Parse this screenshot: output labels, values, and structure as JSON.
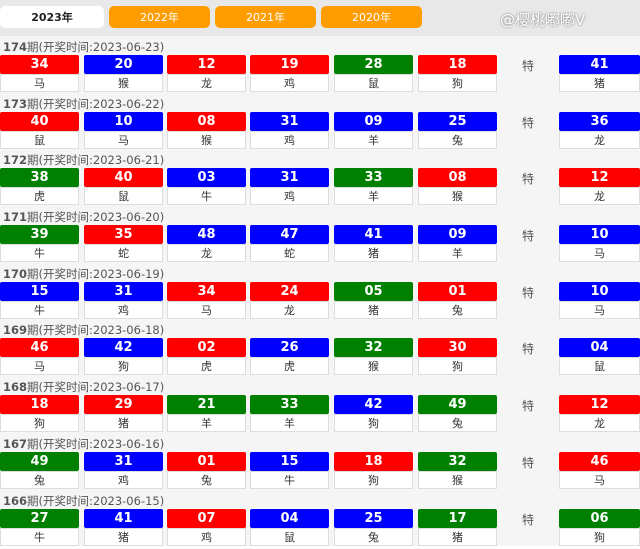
{
  "tabs": [
    {
      "label": "2023年",
      "active": true
    },
    {
      "label": "2022年"
    },
    {
      "label": "2021年"
    },
    {
      "label": "2020年"
    }
  ],
  "colors": {
    "red": "#ff0000",
    "blue": "#0000ff",
    "green": "#008000",
    "tab": "#ff9d00"
  },
  "special_label": "特",
  "period_prefix": "期(开奖时间:",
  "draws": [
    {
      "period": "174",
      "date": "2023-06-23",
      "balls": [
        [
          "34",
          "red",
          "马"
        ],
        [
          "20",
          "blue",
          "猴"
        ],
        [
          "12",
          "red",
          "龙"
        ],
        [
          "19",
          "red",
          "鸡"
        ],
        [
          "28",
          "green",
          "鼠"
        ],
        [
          "18",
          "red",
          "狗"
        ]
      ],
      "special": [
        "41",
        "blue",
        "猪"
      ]
    },
    {
      "period": "173",
      "date": "2023-06-22",
      "balls": [
        [
          "40",
          "red",
          "鼠"
        ],
        [
          "10",
          "blue",
          "马"
        ],
        [
          "08",
          "red",
          "猴"
        ],
        [
          "31",
          "blue",
          "鸡"
        ],
        [
          "09",
          "blue",
          "羊"
        ],
        [
          "25",
          "blue",
          "兔"
        ]
      ],
      "special": [
        "36",
        "blue",
        "龙"
      ]
    },
    {
      "period": "172",
      "date": "2023-06-21",
      "balls": [
        [
          "38",
          "green",
          "虎"
        ],
        [
          "40",
          "red",
          "鼠"
        ],
        [
          "03",
          "blue",
          "牛"
        ],
        [
          "31",
          "blue",
          "鸡"
        ],
        [
          "33",
          "green",
          "羊"
        ],
        [
          "08",
          "red",
          "猴"
        ]
      ],
      "special": [
        "12",
        "red",
        "龙"
      ]
    },
    {
      "period": "171",
      "date": "2023-06-20",
      "balls": [
        [
          "39",
          "green",
          "牛"
        ],
        [
          "35",
          "red",
          "蛇"
        ],
        [
          "48",
          "blue",
          "龙"
        ],
        [
          "47",
          "blue",
          "蛇"
        ],
        [
          "41",
          "blue",
          "猪"
        ],
        [
          "09",
          "blue",
          "羊"
        ]
      ],
      "special": [
        "10",
        "blue",
        "马"
      ]
    },
    {
      "period": "170",
      "date": "2023-06-19",
      "balls": [
        [
          "15",
          "blue",
          "牛"
        ],
        [
          "31",
          "blue",
          "鸡"
        ],
        [
          "34",
          "red",
          "马"
        ],
        [
          "24",
          "red",
          "龙"
        ],
        [
          "05",
          "green",
          "猪"
        ],
        [
          "01",
          "red",
          "兔"
        ]
      ],
      "special": [
        "10",
        "blue",
        "马"
      ]
    },
    {
      "period": "169",
      "date": "2023-06-18",
      "balls": [
        [
          "46",
          "red",
          "马"
        ],
        [
          "42",
          "blue",
          "狗"
        ],
        [
          "02",
          "red",
          "虎"
        ],
        [
          "26",
          "blue",
          "虎"
        ],
        [
          "32",
          "green",
          "猴"
        ],
        [
          "30",
          "red",
          "狗"
        ]
      ],
      "special": [
        "04",
        "blue",
        "鼠"
      ]
    },
    {
      "period": "168",
      "date": "2023-06-17",
      "balls": [
        [
          "18",
          "red",
          "狗"
        ],
        [
          "29",
          "red",
          "猪"
        ],
        [
          "21",
          "green",
          "羊"
        ],
        [
          "33",
          "green",
          "羊"
        ],
        [
          "42",
          "blue",
          "狗"
        ],
        [
          "49",
          "green",
          "兔"
        ]
      ],
      "special": [
        "12",
        "red",
        "龙"
      ]
    },
    {
      "period": "167",
      "date": "2023-06-16",
      "balls": [
        [
          "49",
          "green",
          "兔"
        ],
        [
          "31",
          "blue",
          "鸡"
        ],
        [
          "01",
          "red",
          "兔"
        ],
        [
          "15",
          "blue",
          "牛"
        ],
        [
          "18",
          "red",
          "狗"
        ],
        [
          "32",
          "green",
          "猴"
        ]
      ],
      "special": [
        "46",
        "red",
        "马"
      ]
    },
    {
      "period": "166",
      "date": "2023-06-15",
      "balls": [
        [
          "27",
          "green",
          "牛"
        ],
        [
          "41",
          "blue",
          "猪"
        ],
        [
          "07",
          "red",
          "鸡"
        ],
        [
          "04",
          "blue",
          "鼠"
        ],
        [
          "25",
          "blue",
          "兔"
        ],
        [
          "17",
          "green",
          "猪"
        ]
      ],
      "special": [
        "06",
        "green",
        "狗"
      ]
    }
  ],
  "watermark": "@樱桃嘟嘟V"
}
